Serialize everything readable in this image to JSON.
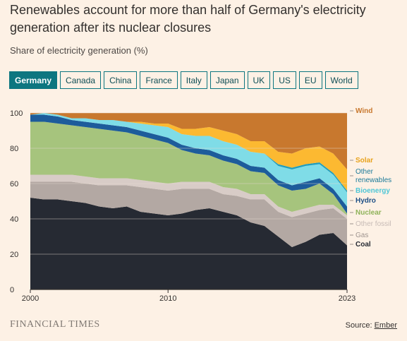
{
  "header": {
    "title": "Renewables account for more than half of Germany's electricity generation after its nuclear closures",
    "subtitle": "Share of electricity generation (%)"
  },
  "tabs": [
    {
      "label": "Germany",
      "active": true
    },
    {
      "label": "Canada",
      "active": false
    },
    {
      "label": "China",
      "active": false
    },
    {
      "label": "France",
      "active": false
    },
    {
      "label": "Italy",
      "active": false
    },
    {
      "label": "Japan",
      "active": false
    },
    {
      "label": "UK",
      "active": false
    },
    {
      "label": "US",
      "active": false
    },
    {
      "label": "EU",
      "active": false
    },
    {
      "label": "World",
      "active": false
    }
  ],
  "footer": {
    "brand": "FINANCIAL TIMES",
    "source_prefix": "Source: ",
    "source_link": "Ember"
  },
  "chart_data": {
    "type": "area",
    "stacked": true,
    "x": [
      2000,
      2001,
      2002,
      2003,
      2004,
      2005,
      2006,
      2007,
      2008,
      2009,
      2010,
      2011,
      2012,
      2013,
      2014,
      2015,
      2016,
      2017,
      2018,
      2019,
      2020,
      2021,
      2022,
      2023
    ],
    "ylim": [
      0,
      100
    ],
    "yticks": [
      0,
      20,
      40,
      60,
      80,
      100
    ],
    "xtick_labels": [
      "2000",
      "2010",
      "2023"
    ],
    "xtick_values": [
      2000,
      2010,
      2023
    ],
    "grid": true,
    "legend": "right-inline",
    "series": [
      {
        "name": "Coal",
        "color": "#262a33",
        "values": [
          52,
          51,
          51,
          50,
          49,
          47,
          46,
          47,
          44,
          43,
          42,
          43,
          45,
          46,
          44,
          42,
          38,
          36,
          30,
          24,
          27,
          31,
          32,
          25
        ]
      },
      {
        "name": "Gas",
        "color": "#b3a8a3",
        "values": [
          9,
          10,
          10,
          11,
          11,
          12,
          13,
          12,
          14,
          14,
          14,
          14,
          12,
          11,
          10,
          11,
          13,
          15,
          14,
          17,
          16,
          14,
          14,
          15
        ]
      },
      {
        "name": "Other fossil",
        "color": "#d8ccc7",
        "values": [
          4,
          4,
          4,
          4,
          4,
          4,
          4,
          4,
          4,
          4,
          4,
          4,
          4,
          4,
          4,
          4,
          3,
          3,
          3,
          3,
          3,
          3,
          2,
          2
        ]
      },
      {
        "name": "Nuclear",
        "color": "#a6c47d",
        "values": [
          30,
          30,
          29,
          28,
          28,
          28,
          27,
          26,
          25,
          24,
          23,
          18,
          16,
          15,
          15,
          14,
          13,
          12,
          12,
          12,
          11,
          12,
          6,
          1
        ]
      },
      {
        "name": "Hydro",
        "color": "#1d5c9b",
        "values": [
          4,
          4,
          4,
          3,
          3,
          3,
          3,
          3,
          3,
          3,
          3,
          3,
          3,
          3,
          3,
          3,
          3,
          3,
          3,
          3,
          4,
          3,
          3,
          4
        ]
      },
      {
        "name": "Bioenergy",
        "color": "#7fdce7",
        "values": [
          0,
          1,
          1,
          1,
          2,
          2,
          3,
          3,
          4,
          5,
          6,
          6,
          7,
          8,
          8,
          8,
          8,
          8,
          8,
          9,
          9,
          8,
          8,
          8
        ]
      },
      {
        "name": "Other renewables",
        "color": "#219ebc",
        "values": [
          0,
          0,
          0,
          0,
          0,
          0,
          0,
          0,
          0,
          0,
          0,
          0,
          0,
          0,
          0,
          0,
          0,
          0,
          1,
          1,
          1,
          1,
          1,
          1
        ]
      },
      {
        "name": "Solar",
        "color": "#fcb931",
        "values": [
          0,
          0,
          0,
          0,
          0,
          0,
          0,
          0,
          1,
          1,
          2,
          3,
          4,
          5,
          6,
          6,
          6,
          7,
          7,
          8,
          9,
          9,
          11,
          12
        ]
      },
      {
        "name": "Wind",
        "color": "#c8782e",
        "values": [
          1,
          0,
          1,
          3,
          3,
          4,
          4,
          5,
          5,
          6,
          6,
          9,
          9,
          8,
          10,
          12,
          16,
          16,
          22,
          23,
          20,
          19,
          23,
          32
        ]
      }
    ],
    "legend_items": [
      {
        "label": "Wind",
        "color": "#c8782e"
      },
      {
        "label": "Solar",
        "color": "#e8a21a"
      },
      {
        "label": "Other renewables",
        "color": "#1c7a99"
      },
      {
        "label": "Bioenergy",
        "color": "#4fc6d6"
      },
      {
        "label": "Hydro",
        "color": "#1d4f86"
      },
      {
        "label": "Nuclear",
        "color": "#8fb35a"
      },
      {
        "label": "Other fossil",
        "color": "#c7bbb6"
      },
      {
        "label": "Gas",
        "color": "#9e938e"
      },
      {
        "label": "Coal",
        "color": "#262a33"
      }
    ]
  }
}
